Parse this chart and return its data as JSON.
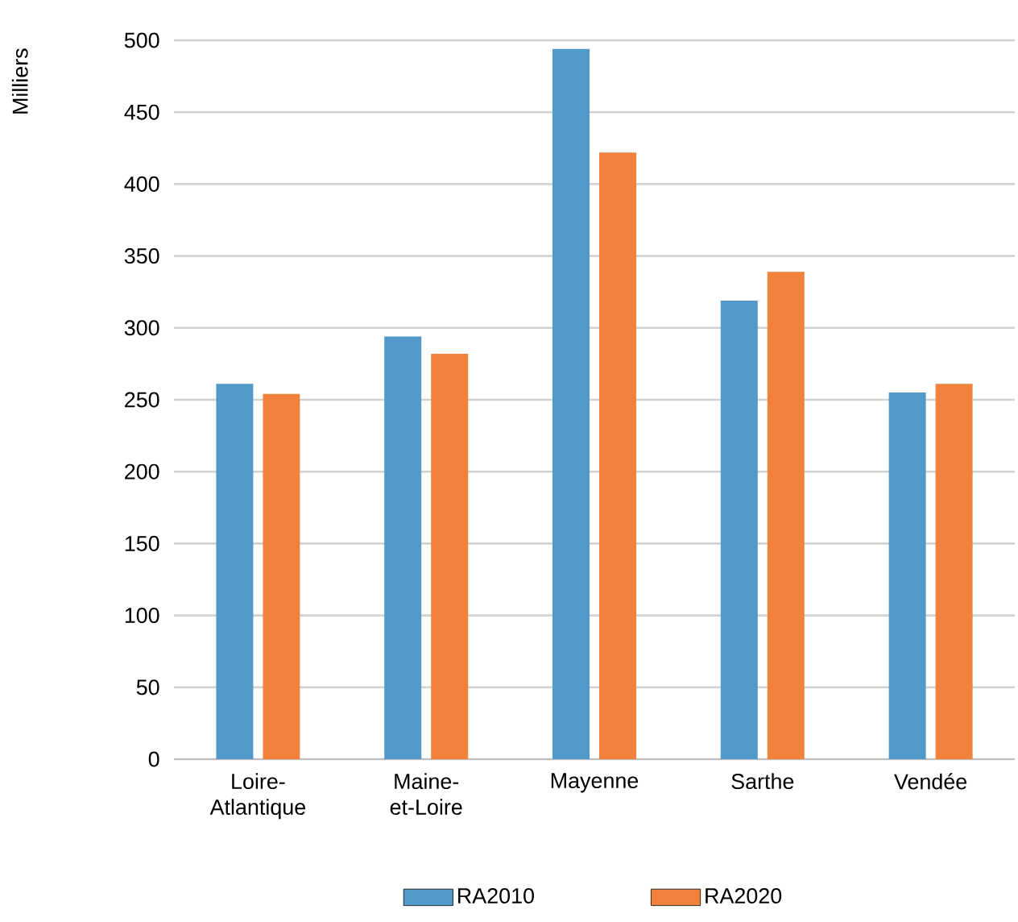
{
  "chart_data": {
    "type": "bar",
    "ylabel": "Milliers",
    "categories": [
      "Loire-Atlantique",
      "Maine-et-Loire",
      "Mayenne",
      "Sarthe",
      "Vendée"
    ],
    "series": [
      {
        "name": "RA2010",
        "color": "#5199cb",
        "values": [
          261,
          294,
          494,
          319,
          255
        ]
      },
      {
        "name": "RA2020",
        "color": "#f0823c",
        "values": [
          254,
          282,
          422,
          339,
          261
        ]
      }
    ],
    "ylim": [
      0,
      500
    ],
    "yticks": [
      0,
      50,
      100,
      150,
      200,
      250,
      300,
      350,
      400,
      450,
      500
    ],
    "grid": "y",
    "legend": "bottom"
  }
}
